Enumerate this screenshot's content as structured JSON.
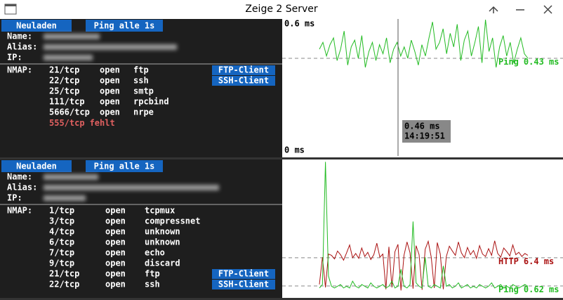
{
  "window": {
    "title": "Zeige 2 Server"
  },
  "panels": [
    {
      "buttons": [
        "Neuladen",
        "Ping alle 1s"
      ],
      "fields": [
        "Name:",
        "Alias:",
        "IP:"
      ],
      "nmap_label": "NMAP:",
      "ports": [
        {
          "port": "21/tcp",
          "state": "open",
          "service": "ftp",
          "action": "FTP-Client"
        },
        {
          "port": "22/tcp",
          "state": "open",
          "service": "ssh",
          "action": "SSH-Client"
        },
        {
          "port": "25/tcp",
          "state": "open",
          "service": "smtp"
        },
        {
          "port": "111/tcp",
          "state": "open",
          "service": "rpcbind"
        },
        {
          "port": "5666/tcp",
          "state": "open",
          "service": "nrpe"
        },
        {
          "port": "555/tcp",
          "state": "fehlt"
        }
      ]
    },
    {
      "buttons": [
        "Neuladen",
        "Ping alle 1s"
      ],
      "fields": [
        "Name:",
        "Alias:",
        "IP:"
      ],
      "nmap_label": "NMAP:",
      "ports": [
        {
          "port": "1/tcp",
          "state": "open",
          "service": "tcpmux"
        },
        {
          "port": "3/tcp",
          "state": "open",
          "service": "compressnet"
        },
        {
          "port": "4/tcp",
          "state": "open",
          "service": "unknown"
        },
        {
          "port": "6/tcp",
          "state": "open",
          "service": "unknown"
        },
        {
          "port": "7/tcp",
          "state": "open",
          "service": "echo"
        },
        {
          "port": "9/tcp",
          "state": "open",
          "service": "discard"
        },
        {
          "port": "21/tcp",
          "state": "open",
          "service": "ftp",
          "action": "FTP-Client"
        },
        {
          "port": "22/tcp",
          "state": "open",
          "service": "ssh",
          "action": "SSH-Client"
        }
      ]
    }
  ],
  "chart_data": [
    {
      "type": "line",
      "ylim": [
        0,
        0.6
      ],
      "yticks": [
        {
          "value": 0,
          "label": "0 ms"
        },
        {
          "value": 0.6,
          "label": "0.6 ms"
        }
      ],
      "tooltip": {
        "value": 0.46,
        "label": "0.46 ms",
        "time": "14:19:51"
      },
      "series": [
        {
          "name": "Ping",
          "color": "#22bb22",
          "reference": 0.43,
          "reference_label": "0.43 ms",
          "values": [
            0.47,
            0.5,
            0.44,
            0.49,
            0.52,
            0.42,
            0.47,
            0.55,
            0.4,
            0.48,
            0.51,
            0.43,
            0.53,
            0.39,
            0.46,
            0.5,
            0.42,
            0.49,
            0.45,
            0.52,
            0.41,
            0.47,
            0.5,
            0.44,
            0.48,
            0.43,
            0.51,
            0.46,
            0.4,
            0.49,
            0.44,
            0.52,
            0.59,
            0.47,
            0.5,
            0.56,
            0.45,
            0.54,
            0.48,
            0.58,
            0.42,
            0.51,
            0.55,
            0.44,
            0.5,
            0.57,
            0.41,
            0.6,
            0.46,
            0.52,
            0.39,
            0.48,
            0.53,
            0.44,
            0.5,
            0.41,
            0.47,
            0.52,
            0.45,
            0.43
          ]
        }
      ]
    },
    {
      "type": "line",
      "series": [
        {
          "name": "HTTP",
          "color": "#aa1111",
          "reference": 6.4,
          "reference_label": "6.4 ms",
          "ylim": [
            0,
            22.5
          ],
          "values": [
            2.0,
            6.5,
            1.5,
            7.0,
            6.8,
            6.2,
            7.5,
            6.9,
            6.0,
            7.2,
            8.5,
            6.4,
            7.1,
            6.3,
            8.0,
            6.6,
            7.3,
            6.1,
            6.9,
            8.8,
            6.5,
            7.0,
            1.2,
            8.2,
            1.5,
            7.4,
            8.6,
            1.0,
            6.8,
            9.0,
            7.2,
            1.3,
            8.4,
            6.9,
            1.1,
            7.8,
            9.1,
            6.5,
            1.4,
            8.9,
            7.0,
            1.2,
            6.6,
            8.3,
            7.5,
            6.8,
            9.0,
            7.2,
            6.4,
            8.1,
            6.9,
            7.6,
            6.3,
            8.4,
            7.0,
            6.6,
            7.9,
            6.8,
            9.2,
            7.1,
            6.5,
            8.0,
            7.4,
            6.7,
            8.5,
            6.9,
            7.3,
            6.6,
            7.1,
            6.8
          ]
        },
        {
          "name": "Ping",
          "color": "#22bb22",
          "reference": 0.62,
          "reference_label": "0.62 ms",
          "ylim": [
            0,
            8
          ],
          "values": [
            0.5,
            0.7,
            7.9,
            1.2,
            0.6,
            0.5,
            0.6,
            0.7,
            0.5,
            0.6,
            0.5,
            0.9,
            0.6,
            0.5,
            0.7,
            0.6,
            0.5,
            0.8,
            0.6,
            0.5,
            0.6,
            0.7,
            0.5,
            0.6,
            0.9,
            0.5,
            0.6,
            1.6,
            0.6,
            0.5,
            0.7,
            4.4,
            0.8,
            0.6,
            0.5,
            2.3,
            0.6,
            0.5,
            0.7,
            0.6,
            0.5,
            1.8,
            0.6,
            0.7,
            0.5,
            0.6,
            0.8,
            0.5,
            0.6,
            0.7,
            0.5,
            0.6,
            0.5,
            0.7,
            0.6,
            0.5,
            0.6,
            0.8,
            0.5,
            0.6,
            0.7,
            0.5,
            0.6,
            0.5,
            0.7,
            0.6,
            0.5,
            0.6,
            0.7,
            0.6
          ]
        }
      ]
    }
  ]
}
